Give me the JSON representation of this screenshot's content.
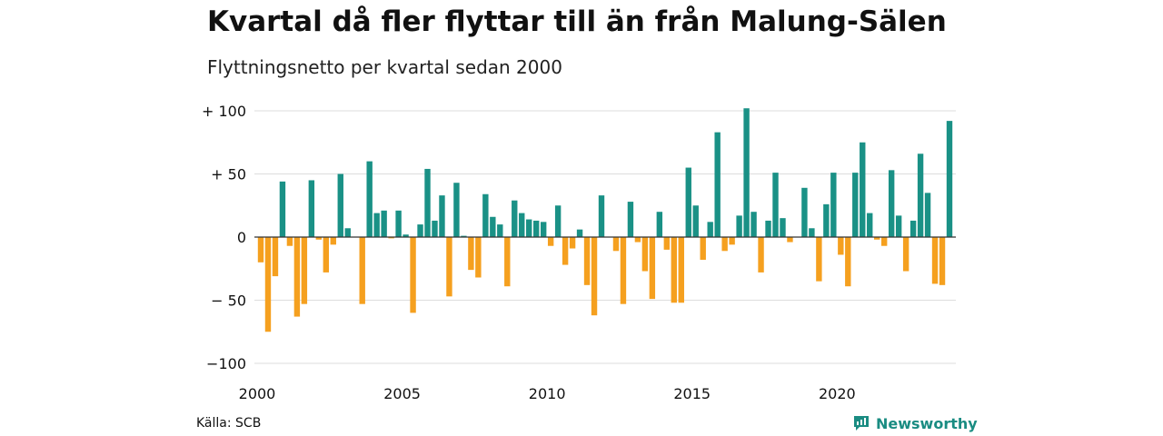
{
  "title": "Kvartal då fler flyttar till än från Malung-Sälen",
  "subtitle": "Flyttningsnetto per kvartal sedan 2000",
  "source": "Källa: SCB",
  "brand": "Newsworthy",
  "colors": {
    "positive": "#1a9186",
    "negative": "#f5a01f",
    "grid": "#dddddd",
    "zero_line": "#333333",
    "brand": "#1a8c82"
  },
  "chart_data": {
    "type": "bar",
    "xlabel": "",
    "ylabel": "",
    "ylim": [
      -110,
      110
    ],
    "y_ticks": [
      100,
      50,
      0,
      -50,
      -100
    ],
    "y_tick_labels": [
      "+ 100",
      "+  50",
      "0",
      "− 50",
      "−100"
    ],
    "x_tick_labels": [
      "2000",
      "2005",
      "2010",
      "2015",
      "2020"
    ],
    "x_tick_positions": [
      2000,
      2005,
      2010,
      2015,
      2020
    ],
    "grid": true,
    "categories": [
      "2000 Q1",
      "2000 Q2",
      "2000 Q3",
      "2000 Q4",
      "2001 Q1",
      "2001 Q2",
      "2001 Q3",
      "2001 Q4",
      "2002 Q1",
      "2002 Q2",
      "2002 Q3",
      "2002 Q4",
      "2003 Q1",
      "2003 Q2",
      "2003 Q3",
      "2003 Q4",
      "2004 Q1",
      "2004 Q2",
      "2004 Q3",
      "2004 Q4",
      "2005 Q1",
      "2005 Q2",
      "2005 Q3",
      "2005 Q4",
      "2006 Q1",
      "2006 Q2",
      "2006 Q3",
      "2006 Q4",
      "2007 Q1",
      "2007 Q2",
      "2007 Q3",
      "2007 Q4",
      "2008 Q1",
      "2008 Q2",
      "2008 Q3",
      "2008 Q4",
      "2009 Q1",
      "2009 Q2",
      "2009 Q3",
      "2009 Q4",
      "2010 Q1",
      "2010 Q2",
      "2010 Q3",
      "2010 Q4",
      "2011 Q1",
      "2011 Q2",
      "2011 Q3",
      "2011 Q4",
      "2012 Q1",
      "2012 Q2",
      "2012 Q3",
      "2012 Q4",
      "2013 Q1",
      "2013 Q2",
      "2013 Q3",
      "2013 Q4",
      "2014 Q1",
      "2014 Q2",
      "2014 Q3",
      "2014 Q4",
      "2015 Q1",
      "2015 Q2",
      "2015 Q3",
      "2015 Q4",
      "2016 Q1",
      "2016 Q2",
      "2016 Q3",
      "2016 Q4",
      "2017 Q1",
      "2017 Q2",
      "2017 Q3",
      "2017 Q4",
      "2018 Q1",
      "2018 Q2",
      "2018 Q3",
      "2018 Q4",
      "2019 Q1",
      "2019 Q2",
      "2019 Q3",
      "2019 Q4",
      "2020 Q1",
      "2020 Q2",
      "2020 Q3",
      "2020 Q4",
      "2021 Q1",
      "2021 Q2",
      "2021 Q3",
      "2021 Q4",
      "2022 Q1",
      "2022 Q2",
      "2022 Q3",
      "2022 Q4",
      "2023 Q1",
      "2023 Q2",
      "2023 Q3",
      "2023 Q4",
      "2024 Q1"
    ],
    "values": [
      -20,
      -75,
      -31,
      44,
      -7,
      -63,
      -53,
      45,
      -2,
      -28,
      -6,
      50,
      7,
      0,
      -53,
      60,
      19,
      21,
      -1,
      21,
      2,
      -60,
      10,
      54,
      13,
      33,
      -47,
      43,
      1,
      -26,
      -32,
      34,
      16,
      10,
      -39,
      29,
      19,
      14,
      13,
      12,
      -7,
      25,
      -22,
      -9,
      6,
      -38,
      -62,
      33,
      0,
      -11,
      -53,
      28,
      -4,
      -27,
      -49,
      20,
      -10,
      -52,
      -52,
      55,
      25,
      -18,
      12,
      83,
      -11,
      -6,
      17,
      102,
      20,
      -28,
      13,
      51,
      15,
      -4,
      0,
      39,
      7,
      -35,
      26,
      51,
      -14,
      -39,
      51,
      75,
      19,
      -2,
      -7,
      53,
      17,
      -27,
      13,
      66,
      35,
      -37,
      -38,
      92,
      0
    ]
  }
}
